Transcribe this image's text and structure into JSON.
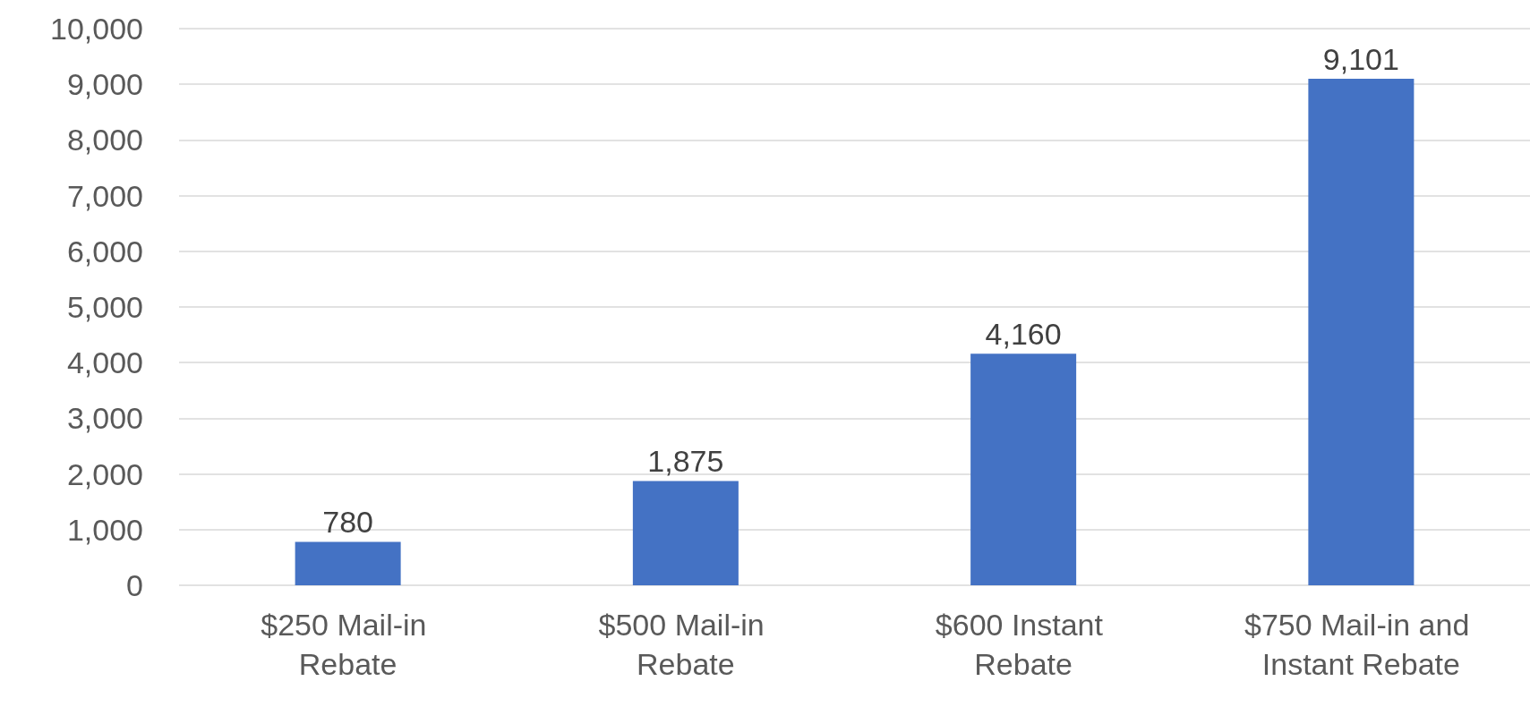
{
  "chart_data": {
    "type": "bar",
    "categories": [
      "$250 Mail-in Rebate",
      "$500 Mail-in Rebate",
      "$600 Instant Rebate",
      "$750 Mail-in and Instant Rebate"
    ],
    "values": [
      780,
      1875,
      4160,
      9101
    ],
    "value_labels": [
      "780",
      "1,875",
      "4,160",
      "9,101"
    ],
    "color": "#4472c4",
    "ylim": [
      0,
      10000
    ],
    "yticks": [
      0,
      {
        "value": 1000,
        "label": "1,000"
      },
      {
        "value": 2000,
        "label": "2,000"
      },
      {
        "value": 3000,
        "label": "3,000"
      },
      {
        "value": 4000,
        "label": "4,000"
      },
      {
        "value": 5000,
        "label": "5,000"
      },
      {
        "value": 6000,
        "label": "6,000"
      },
      {
        "value": 7000,
        "label": "7,000"
      },
      {
        "value": 8000,
        "label": "8,000"
      },
      {
        "value": 9000,
        "label": "9,000"
      },
      {
        "value": 10000,
        "label": "10,000"
      }
    ],
    "grid": "y"
  }
}
